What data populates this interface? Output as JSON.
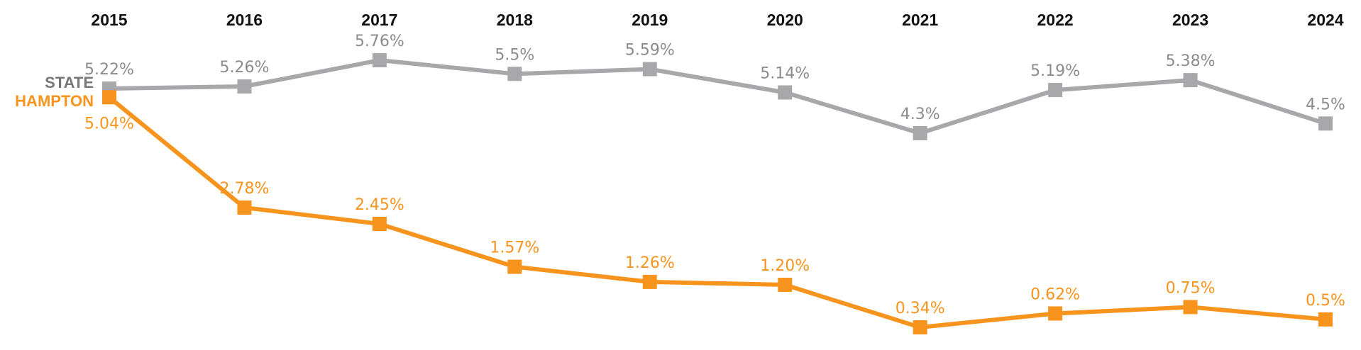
{
  "chart_data": {
    "type": "line",
    "title": "",
    "xlabel": "",
    "ylabel": "",
    "categories": [
      "2015",
      "2016",
      "2017",
      "2018",
      "2019",
      "2020",
      "2021",
      "2022",
      "2023",
      "2024"
    ],
    "ylim": [
      0,
      6
    ],
    "grid": false,
    "legend": "left",
    "series": [
      {
        "name": "STATE",
        "color": "#a8a8ab",
        "label_color": "#8c8c8f",
        "values": [
          5.22,
          5.26,
          5.76,
          5.5,
          5.59,
          5.14,
          4.3,
          5.19,
          5.38,
          4.5
        ],
        "labels": [
          "5.22%",
          "5.26%",
          "5.76%",
          "5.5%",
          "5.59%",
          "5.14%",
          "4.3%",
          "5.19%",
          "5.38%",
          "4.5%"
        ]
      },
      {
        "name": "HAMPTON",
        "color": "#f7941d",
        "label_color": "#f7941d",
        "values": [
          5.04,
          2.78,
          2.45,
          1.57,
          1.26,
          1.2,
          0.34,
          0.62,
          0.75,
          0.5
        ],
        "labels": [
          "5.04%",
          "2.78%",
          "2.45%",
          "1.57%",
          "1.26%",
          "1.20%",
          "0.34%",
          "0.62%",
          "0.75%",
          "0.5%"
        ]
      }
    ]
  }
}
